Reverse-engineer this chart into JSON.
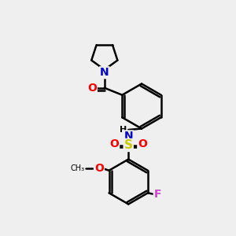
{
  "background_color": "#efefef",
  "colors": {
    "carbon": "#000000",
    "nitrogen": "#0000cc",
    "oxygen": "#ff0000",
    "sulfur": "#cccc00",
    "fluorine": "#cc44cc",
    "bond": "#000000"
  },
  "bond_lw": 1.8,
  "font_size_atom": 9,
  "xlim": [
    0,
    10
  ],
  "ylim": [
    0,
    10
  ]
}
